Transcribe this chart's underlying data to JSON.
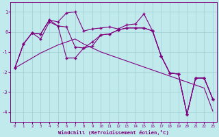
{
  "x": [
    0,
    1,
    2,
    3,
    4,
    5,
    6,
    7,
    8,
    9,
    10,
    11,
    12,
    13,
    14,
    15,
    16,
    17,
    18,
    19,
    20,
    21,
    22,
    23
  ],
  "line_trend": [
    -1.8,
    -1.55,
    -1.3,
    -1.05,
    -0.85,
    -0.65,
    -0.5,
    -0.35,
    -0.6,
    -0.8,
    -1.0,
    -1.15,
    -1.3,
    -1.45,
    -1.6,
    -1.75,
    -1.9,
    -2.05,
    -2.2,
    -2.35,
    -2.5,
    -2.65,
    -2.8,
    -3.95
  ],
  "line_main": [
    -1.8,
    -0.6,
    -0.05,
    -0.1,
    0.6,
    0.3,
    -1.3,
    -1.3,
    -0.8,
    -0.7,
    -0.15,
    -0.1,
    0.1,
    0.2,
    0.2,
    0.2,
    0.05,
    -1.2,
    -2.05,
    -2.1,
    -4.1,
    -2.3,
    -2.3,
    -3.35
  ],
  "line_max": [
    -1.8,
    -0.6,
    -0.05,
    -0.1,
    0.6,
    0.5,
    0.95,
    1.0,
    0.05,
    0.15,
    0.2,
    0.25,
    0.15,
    0.35,
    0.4,
    0.9,
    0.05,
    -1.2,
    -2.05,
    -2.1,
    -4.1,
    -2.3,
    -2.3,
    -3.35
  ],
  "line_alt": [
    -1.8,
    -0.6,
    -0.05,
    -0.35,
    0.5,
    0.3,
    0.25,
    -0.75,
    -0.8,
    -0.5,
    -0.15,
    -0.1,
    0.1,
    0.2,
    0.2,
    0.2,
    0.05,
    -1.2,
    -2.05,
    -2.1,
    -4.1,
    -2.3,
    -2.3,
    -3.35
  ],
  "xlim": [
    -0.5,
    23.5
  ],
  "ylim": [
    -4.5,
    1.5
  ],
  "xticks": [
    0,
    1,
    2,
    3,
    4,
    5,
    6,
    7,
    8,
    9,
    10,
    11,
    12,
    13,
    14,
    15,
    16,
    17,
    18,
    19,
    20,
    21,
    22,
    23
  ],
  "yticks": [
    -4,
    -3,
    -2,
    -1,
    0,
    1
  ],
  "xlabel": "Windchill (Refroidissement éolien,°C)",
  "line_color": "#800080",
  "bg_color": "#c0eaec",
  "grid_color": "#a0ccd4",
  "marker": "+"
}
